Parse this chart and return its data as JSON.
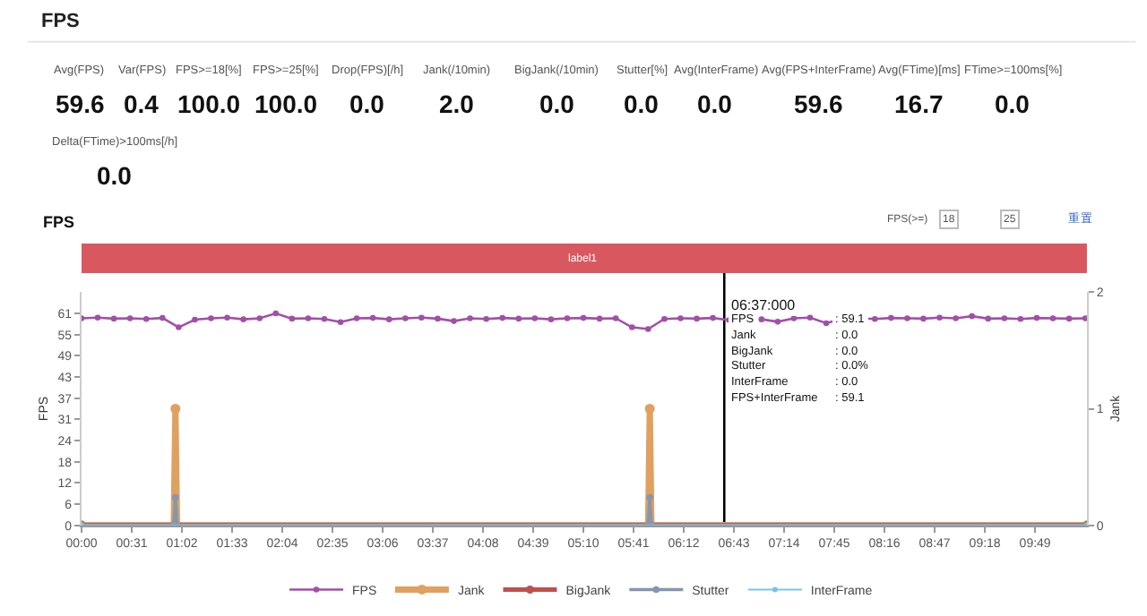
{
  "chart_data": [
    {
      "type": "other",
      "title": "FPS",
      "annotations": [
        "Avg(FPS)",
        "59.6",
        "Var(FPS)",
        "0.4",
        "FPS>=18[%]",
        "100.0",
        "FPS>=25[%]",
        "100.0",
        "Drop(FPS)[/h]",
        "0.0",
        "Jank(/10min)",
        "2.0",
        "BigJank(/10min)",
        "0.0",
        "Stutter[%]",
        "0.0",
        "Avg(InterFrame)",
        "0.0",
        "Avg(FPS+InterFrame)",
        "59.6",
        "Avg(FTime)[ms]",
        "16.7",
        "FTime>=100ms[%]",
        "0.0",
        "Delta(FTime)>100ms[/h]",
        "0.0"
      ]
    },
    {
      "type": "line",
      "title": "FPS",
      "ylabel": "FPS",
      "y2label": "Jank",
      "xlim": [
        0,
        621
      ],
      "xticks": [
        {
          "value": 0,
          "label": "00:00"
        },
        {
          "value": 31,
          "label": "00:31"
        },
        {
          "value": 62,
          "label": "01:02"
        },
        {
          "value": 93,
          "label": "01:33"
        },
        {
          "value": 124,
          "label": "02:04"
        },
        {
          "value": 155,
          "label": "02:35"
        },
        {
          "value": 186,
          "label": "03:06"
        },
        {
          "value": 217,
          "label": "03:37"
        },
        {
          "value": 248,
          "label": "04:08"
        },
        {
          "value": 279,
          "label": "04:39"
        },
        {
          "value": 310,
          "label": "05:10"
        },
        {
          "value": 341,
          "label": "05:41"
        },
        {
          "value": 372,
          "label": "06:12"
        },
        {
          "value": 403,
          "label": "06:43"
        },
        {
          "value": 434,
          "label": "07:14"
        },
        {
          "value": 465,
          "label": "07:45"
        },
        {
          "value": 496,
          "label": "08:16"
        },
        {
          "value": 527,
          "label": "08:47"
        },
        {
          "value": 558,
          "label": "09:18"
        },
        {
          "value": 589,
          "label": "09:49"
        }
      ],
      "ylim": [
        0,
        67.1
      ],
      "yticks": [
        0,
        {
          "value": 6.1,
          "label": "6"
        },
        {
          "value": 12.2,
          "label": "12"
        },
        {
          "value": 18.3,
          "label": "18"
        },
        {
          "value": 24.4,
          "label": "24"
        },
        {
          "value": 30.5,
          "label": "31"
        },
        {
          "value": 36.6,
          "label": "37"
        },
        {
          "value": 42.7,
          "label": "43"
        },
        {
          "value": 48.8,
          "label": "49"
        },
        {
          "value": 54.9,
          "label": "55"
        },
        {
          "value": 61,
          "label": "61"
        }
      ],
      "y2lim": [
        0,
        2
      ],
      "y2ticks": [
        0,
        1,
        2
      ],
      "legend": "bottom",
      "marker": "circle",
      "line_style": "solid",
      "series": [
        {
          "name": "FPS",
          "color": "#a14fa8",
          "x": [
            0,
            10,
            20,
            30,
            40,
            50,
            60,
            70,
            80,
            90,
            100,
            110,
            120,
            130,
            140,
            150,
            160,
            170,
            180,
            190,
            200,
            210,
            220,
            230,
            240,
            250,
            260,
            270,
            280,
            290,
            300,
            310,
            320,
            330,
            340,
            350,
            360,
            370,
            380,
            390,
            400,
            410,
            420,
            430,
            440,
            450,
            460,
            470,
            480,
            490,
            500,
            510,
            520,
            530,
            540,
            550,
            560,
            570,
            580,
            590,
            600,
            610,
            620
          ],
          "values": [
            59.6,
            59.8,
            59.5,
            59.6,
            59.4,
            59.7,
            57.0,
            59.2,
            59.6,
            59.8,
            59.3,
            59.6,
            61.0,
            59.5,
            59.6,
            59.4,
            58.5,
            59.6,
            59.7,
            59.3,
            59.6,
            59.8,
            59.5,
            58.8,
            59.6,
            59.4,
            59.7,
            59.5,
            59.6,
            59.3,
            59.6,
            59.7,
            59.5,
            59.6,
            57.0,
            56.5,
            59.4,
            59.6,
            59.5,
            59.7,
            59.1,
            null,
            59.3,
            58.6,
            59.6,
            59.8,
            58.2,
            59.5,
            59.6,
            59.4,
            59.7,
            59.6,
            59.5,
            59.8,
            59.6,
            60.2,
            59.5,
            59.6,
            59.4,
            59.7,
            59.6,
            59.5,
            59.6
          ]
        },
        {
          "name": "Jank",
          "color": "#e0a060",
          "axis": "y2",
          "x": [
            0,
            57,
            58,
            59,
            350,
            351,
            352,
            621
          ],
          "values": [
            0,
            0,
            1,
            0,
            0,
            1,
            0,
            0
          ]
        },
        {
          "name": "BigJank",
          "color": "#c0504d",
          "axis": "y2",
          "x": [
            0,
            621
          ],
          "values": [
            0,
            0
          ]
        },
        {
          "name": "Stutter",
          "color": "#8596b0",
          "x": [
            0,
            57,
            58,
            59,
            350,
            351,
            352,
            621
          ],
          "values": [
            0,
            0,
            8,
            0,
            0,
            8,
            0,
            0
          ]
        },
        {
          "name": "InterFrame",
          "color": "#7cc3e8",
          "x": [
            0,
            621
          ],
          "values": [
            0,
            0
          ]
        }
      ],
      "ref_lines": [
        {
          "axis": "x",
          "value": 397,
          "color": "#000000"
        }
      ],
      "bands": [
        {
          "axis": "x",
          "from": 0,
          "to": 621,
          "label": "label1"
        }
      ],
      "annotations": [
        "06:37:000",
        "FPS",
        ": 59.1",
        "Jank",
        ": 0.0",
        "BigJank",
        ": 0.0",
        "Stutter",
        ": 0.0%",
        "InterFrame",
        ": 0.0",
        "FPS+InterFrame",
        ": 59.1",
        "FPS(>=)",
        "18",
        "25",
        "重置"
      ]
    }
  ]
}
